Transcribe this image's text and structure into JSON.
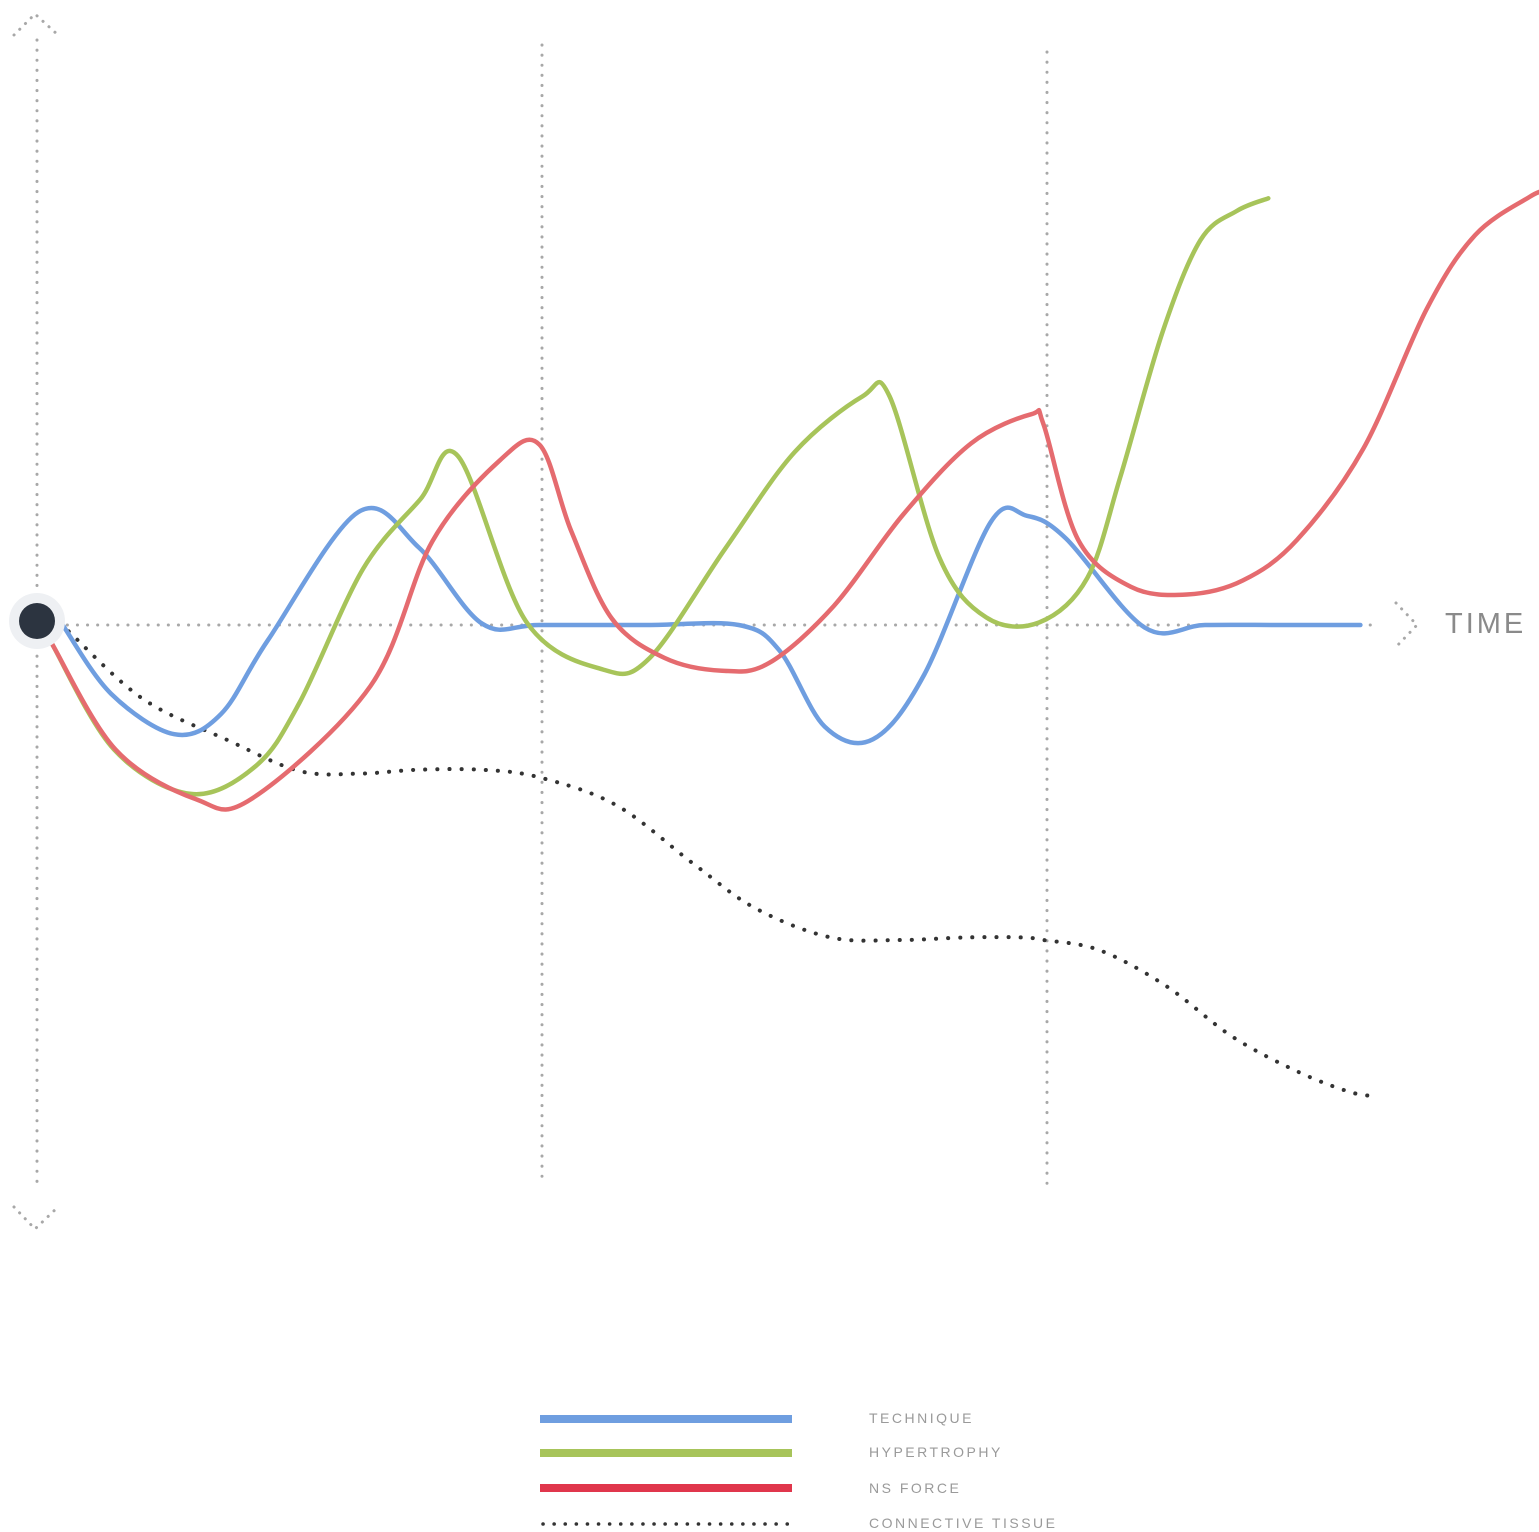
{
  "chart_data": {
    "type": "line",
    "xlabel": "TIME",
    "ylabel": "",
    "xlim": [
      0,
      10
    ],
    "ylim": [
      -4,
      4
    ],
    "grid": "dotted vertical lines at x = 3.33 and 6.67",
    "origin_marker": "dark circle at (0, 0)",
    "legend_position": "bottom-center",
    "colors": {
      "technique": "#6f9ee0",
      "hypertrophy": "#a7c45a",
      "ns_force": "#e56b6f",
      "connective_tissue": "#333333",
      "axis": "#a8a8a8"
    },
    "series": [
      {
        "name": "TECHNIQUE",
        "style": "solid",
        "x": [
          0.17,
          0.49,
          0.91,
          1.22,
          1.53,
          2.13,
          2.53,
          2.95,
          3.33,
          4.05,
          4.65,
          4.92,
          5.22,
          5.54,
          5.88,
          6.32,
          6.56,
          6.82,
          7.34,
          7.74,
          8.25,
          8.77
        ],
        "y": [
          0,
          -0.54,
          -0.86,
          -0.7,
          -0.12,
          0.89,
          0.61,
          0.01,
          0,
          0,
          0,
          -0.2,
          -0.8,
          -0.9,
          -0.39,
          0.81,
          0.86,
          0.68,
          -0.02,
          0,
          0,
          0
        ]
      },
      {
        "name": "HYPERTROPHY",
        "style": "solid",
        "x": [
          0.1,
          0.51,
          1.02,
          1.45,
          1.74,
          2.16,
          2.54,
          2.79,
          3.24,
          3.75,
          4.06,
          4.56,
          5.02,
          5.47,
          5.65,
          5.98,
          6.29,
          6.64,
          6.96,
          7.18,
          7.46,
          7.71,
          7.95,
          8.16
        ],
        "y": [
          -0.15,
          -0.98,
          -1.33,
          -1.11,
          -0.61,
          0.44,
          0.99,
          1.33,
          0.03,
          -0.35,
          -0.26,
          0.6,
          1.36,
          1.8,
          1.8,
          0.53,
          0.06,
          0.02,
          0.37,
          1.17,
          2.31,
          3.03,
          3.26,
          3.36
        ]
      },
      {
        "name": "NS FORCE",
        "style": "solid",
        "x": [
          0.1,
          0.52,
          1.05,
          1.42,
          2.21,
          2.62,
          3.07,
          3.33,
          3.54,
          3.81,
          4.16,
          4.54,
          4.85,
          5.28,
          5.74,
          6.19,
          6.59,
          6.67,
          6.9,
          7.25,
          7.62,
          7.99,
          8.35,
          8.79,
          9.21,
          9.53,
          9.89,
          10.0
        ],
        "y": [
          -0.15,
          -0.98,
          -1.37,
          -1.37,
          -0.48,
          0.66,
          1.3,
          1.42,
          0.74,
          0.05,
          -0.26,
          -0.36,
          -0.3,
          0.15,
          0.87,
          1.43,
          1.66,
          1.58,
          0.67,
          0.3,
          0.24,
          0.35,
          0.67,
          1.39,
          2.49,
          3.07,
          3.37,
          3.42
        ]
      },
      {
        "name": "CONNECTIVE TISSUE",
        "style": "dotted",
        "x": [
          0.21,
          0.7,
          1.27,
          1.74,
          2.14,
          2.52,
          2.95,
          3.33,
          3.84,
          4.35,
          4.76,
          5.26,
          5.72,
          6.16,
          6.52,
          6.67,
          7.04,
          7.48,
          7.92,
          8.36,
          8.71,
          8.89
        ],
        "y": [
          -0.05,
          -0.58,
          -0.91,
          -1.15,
          -1.17,
          -1.14,
          -1.14,
          -1.2,
          -1.42,
          -1.88,
          -2.23,
          -2.46,
          -2.48,
          -2.46,
          -2.46,
          -2.48,
          -2.56,
          -2.84,
          -3.24,
          -3.52,
          -3.68,
          -3.71
        ]
      }
    ]
  },
  "legend": {
    "items": [
      {
        "label": "TECHNIQUE"
      },
      {
        "label": "HYPERTROPHY"
      },
      {
        "label": "NS FORCE"
      },
      {
        "label": "CONNECTIVE TISSUE"
      }
    ]
  }
}
